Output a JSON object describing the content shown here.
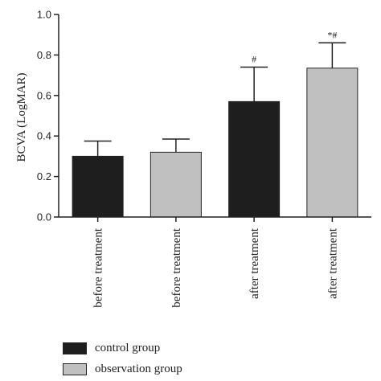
{
  "chart_data": {
    "type": "bar",
    "ylabel": "BCVA (LogMAR)",
    "xlabel": "",
    "ylim": [
      0,
      1.0
    ],
    "yticks": [
      "0.0",
      "0.2",
      "0.4",
      "0.6",
      "0.8",
      "1.0"
    ],
    "categories": [
      "before treatment",
      "before treatment",
      "after treatment",
      "after treatment"
    ],
    "bars": [
      {
        "category": "before treatment",
        "series": "control group",
        "value": 0.3,
        "error": 0.075,
        "annotation": ""
      },
      {
        "category": "before treatment",
        "series": "observation group",
        "value": 0.32,
        "error": 0.065,
        "annotation": ""
      },
      {
        "category": "after treatment",
        "series": "control group",
        "value": 0.57,
        "error": 0.17,
        "annotation": "#"
      },
      {
        "category": "after treatment",
        "series": "observation group",
        "value": 0.735,
        "error": 0.125,
        "annotation": "*#"
      }
    ],
    "legend": [
      {
        "name": "control group",
        "color": "#1e1e1e"
      },
      {
        "name": "observation group",
        "color": "#c0c0c0"
      }
    ],
    "legend_position": "bottom-left",
    "grid": false
  }
}
